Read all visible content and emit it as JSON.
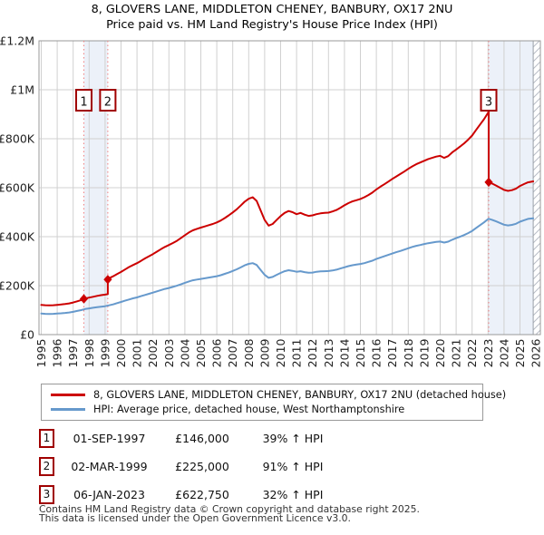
{
  "title": {
    "line1": "8, GLOVERS LANE, MIDDLETON CHENEY, BANBURY, OX17 2NU",
    "line2": "Price paid vs. HM Land Registry's House Price Index (HPI)"
  },
  "colors": {
    "price_line": "#cc0000",
    "hpi_line": "#6699cc",
    "marker_box_border": "#a00000",
    "sale_dash_line": "#f08080",
    "grid": "#d0d0d0",
    "plot_border": "#999999",
    "band_fill": "#ecf1f9",
    "hatch_stroke": "#b9bec7",
    "tick_text": "#222222"
  },
  "chart_data": {
    "type": "line",
    "title": "8, GLOVERS LANE, MIDDLETON CHENEY, BANBURY, OX17 2NU",
    "subtitle": "Price paid vs. HM Land Registry's House Price Index (HPI)",
    "xlim": [
      1994.86,
      2026.28
    ],
    "ylim": [
      0,
      1200000
    ],
    "grid": true,
    "legend_position": "below",
    "x_ticks": [
      1995,
      1996,
      1997,
      1998,
      1999,
      2000,
      2001,
      2002,
      2003,
      2004,
      2005,
      2006,
      2007,
      2008,
      2009,
      2010,
      2011,
      2012,
      2013,
      2014,
      2015,
      2016,
      2017,
      2018,
      2019,
      2020,
      2021,
      2022,
      2023,
      2024,
      2025,
      2026
    ],
    "y_ticks": [
      {
        "v": 0,
        "label": "£0"
      },
      {
        "v": 200000,
        "label": "£200K"
      },
      {
        "v": 400000,
        "label": "£400K"
      },
      {
        "v": 600000,
        "label": "£600K"
      },
      {
        "v": 800000,
        "label": "£800K"
      },
      {
        "v": 1000000,
        "label": "£1M"
      },
      {
        "v": 1200000,
        "label": "£1.2M"
      }
    ],
    "bands": [
      [
        1997.67,
        1999.17
      ],
      [
        2023.04,
        2025.83
      ]
    ],
    "hatch": [
      2025.83,
      2026.28
    ],
    "sales": [
      {
        "label": "1",
        "x": 1997.67,
        "price": 146000
      },
      {
        "label": "2",
        "x": 1999.17,
        "price": 225000
      },
      {
        "label": "3",
        "x": 2023.04,
        "price": 622750
      }
    ],
    "series": [
      {
        "name": "8, GLOVERS LANE, MIDDLETON CHENEY, BANBURY, OX17 2NU (detached house)",
        "color": "#cc0000",
        "points": [
          [
            1995.0,
            121000
          ],
          [
            1995.25,
            120000
          ],
          [
            1995.5,
            119500
          ],
          [
            1995.75,
            120000
          ],
          [
            1996.0,
            121500
          ],
          [
            1996.25,
            123000
          ],
          [
            1996.5,
            125000
          ],
          [
            1996.75,
            127500
          ],
          [
            1997.0,
            131000
          ],
          [
            1997.25,
            136000
          ],
          [
            1997.5,
            141000
          ],
          [
            1997.67,
            146000
          ],
          [
            1997.75,
            147500
          ],
          [
            1998.0,
            151000
          ],
          [
            1998.25,
            154500
          ],
          [
            1998.5,
            158000
          ],
          [
            1998.75,
            161000
          ],
          [
            1999.0,
            163500
          ],
          [
            1999.17,
            165000
          ],
          [
            1999.17,
            225000
          ],
          [
            1999.25,
            230000
          ],
          [
            1999.5,
            238000
          ],
          [
            1999.75,
            247000
          ],
          [
            2000.0,
            256000
          ],
          [
            2000.25,
            266000
          ],
          [
            2000.5,
            276000
          ],
          [
            2000.75,
            284000
          ],
          [
            2001.0,
            292000
          ],
          [
            2001.25,
            301000
          ],
          [
            2001.5,
            311000
          ],
          [
            2001.75,
            320000
          ],
          [
            2002.0,
            329000
          ],
          [
            2002.25,
            339000
          ],
          [
            2002.5,
            349000
          ],
          [
            2002.75,
            358000
          ],
          [
            2003.0,
            366000
          ],
          [
            2003.25,
            374000
          ],
          [
            2003.5,
            383000
          ],
          [
            2003.75,
            394000
          ],
          [
            2004.0,
            406000
          ],
          [
            2004.25,
            417000
          ],
          [
            2004.5,
            426000
          ],
          [
            2004.75,
            432000
          ],
          [
            2005.0,
            437000
          ],
          [
            2005.25,
            442000
          ],
          [
            2005.5,
            447000
          ],
          [
            2005.75,
            452000
          ],
          [
            2006.0,
            458000
          ],
          [
            2006.25,
            466000
          ],
          [
            2006.5,
            476000
          ],
          [
            2006.75,
            487000
          ],
          [
            2007.0,
            499000
          ],
          [
            2007.25,
            512000
          ],
          [
            2007.5,
            527000
          ],
          [
            2007.75,
            543000
          ],
          [
            2008.0,
            555000
          ],
          [
            2008.25,
            561000
          ],
          [
            2008.5,
            546000
          ],
          [
            2008.75,
            507000
          ],
          [
            2009.0,
            468000
          ],
          [
            2009.25,
            445000
          ],
          [
            2009.5,
            452000
          ],
          [
            2009.75,
            468000
          ],
          [
            2010.0,
            484000
          ],
          [
            2010.25,
            497000
          ],
          [
            2010.5,
            505000
          ],
          [
            2010.75,
            500000
          ],
          [
            2011.0,
            492000
          ],
          [
            2011.25,
            497000
          ],
          [
            2011.5,
            490000
          ],
          [
            2011.75,
            485000
          ],
          [
            2012.0,
            487000
          ],
          [
            2012.25,
            492000
          ],
          [
            2012.5,
            495000
          ],
          [
            2012.75,
            497000
          ],
          [
            2013.0,
            498000
          ],
          [
            2013.25,
            503000
          ],
          [
            2013.5,
            509000
          ],
          [
            2013.75,
            518000
          ],
          [
            2014.0,
            528000
          ],
          [
            2014.25,
            537000
          ],
          [
            2014.5,
            544000
          ],
          [
            2014.75,
            549000
          ],
          [
            2015.0,
            554000
          ],
          [
            2015.25,
            561000
          ],
          [
            2015.5,
            570000
          ],
          [
            2015.75,
            580000
          ],
          [
            2016.0,
            593000
          ],
          [
            2016.25,
            604000
          ],
          [
            2016.5,
            614000
          ],
          [
            2016.75,
            625000
          ],
          [
            2017.0,
            636000
          ],
          [
            2017.25,
            646000
          ],
          [
            2017.5,
            656000
          ],
          [
            2017.75,
            666000
          ],
          [
            2018.0,
            677000
          ],
          [
            2018.25,
            687000
          ],
          [
            2018.5,
            696000
          ],
          [
            2018.75,
            703000
          ],
          [
            2019.0,
            710000
          ],
          [
            2019.25,
            717000
          ],
          [
            2019.5,
            722000
          ],
          [
            2019.75,
            727000
          ],
          [
            2020.0,
            730000
          ],
          [
            2020.25,
            722000
          ],
          [
            2020.5,
            729000
          ],
          [
            2020.75,
            744000
          ],
          [
            2021.0,
            756000
          ],
          [
            2021.25,
            768000
          ],
          [
            2021.5,
            781000
          ],
          [
            2021.75,
            796000
          ],
          [
            2022.0,
            813000
          ],
          [
            2022.25,
            836000
          ],
          [
            2022.5,
            858000
          ],
          [
            2022.75,
            880000
          ],
          [
            2023.0,
            906000
          ],
          [
            2023.04,
            912000
          ],
          [
            2023.04,
            622750
          ],
          [
            2023.25,
            617000
          ],
          [
            2023.5,
            609000
          ],
          [
            2023.75,
            600000
          ],
          [
            2024.0,
            591000
          ],
          [
            2024.25,
            587000
          ],
          [
            2024.5,
            590000
          ],
          [
            2024.75,
            596000
          ],
          [
            2025.0,
            607000
          ],
          [
            2025.25,
            615000
          ],
          [
            2025.5,
            622000
          ],
          [
            2025.83,
            626000
          ]
        ]
      },
      {
        "name": "HPI: Average price, detached house, West Northamptonshire",
        "color": "#6699cc",
        "points": [
          [
            1995.0,
            86000
          ],
          [
            1995.25,
            85000
          ],
          [
            1995.5,
            84500
          ],
          [
            1995.75,
            85000
          ],
          [
            1996.0,
            86000
          ],
          [
            1996.25,
            87000
          ],
          [
            1996.5,
            88500
          ],
          [
            1996.75,
            90500
          ],
          [
            1997.0,
            93000
          ],
          [
            1997.25,
            96500
          ],
          [
            1997.5,
            100000
          ],
          [
            1997.75,
            104500
          ],
          [
            1998.0,
            107000
          ],
          [
            1998.25,
            109500
          ],
          [
            1998.5,
            112000
          ],
          [
            1998.75,
            114000
          ],
          [
            1999.0,
            116000
          ],
          [
            1999.25,
            119500
          ],
          [
            1999.5,
            123500
          ],
          [
            1999.75,
            128500
          ],
          [
            2000.0,
            133500
          ],
          [
            2000.25,
            138500
          ],
          [
            2000.5,
            143500
          ],
          [
            2000.75,
            148000
          ],
          [
            2001.0,
            152000
          ],
          [
            2001.25,
            157000
          ],
          [
            2001.5,
            162000
          ],
          [
            2001.75,
            166500
          ],
          [
            2002.0,
            171500
          ],
          [
            2002.25,
            176500
          ],
          [
            2002.5,
            182000
          ],
          [
            2002.75,
            186500
          ],
          [
            2003.0,
            190500
          ],
          [
            2003.25,
            195000
          ],
          [
            2003.5,
            199500
          ],
          [
            2003.75,
            205000
          ],
          [
            2004.0,
            211500
          ],
          [
            2004.25,
            217000
          ],
          [
            2004.5,
            222000
          ],
          [
            2004.75,
            225000
          ],
          [
            2005.0,
            227500
          ],
          [
            2005.25,
            230000
          ],
          [
            2005.5,
            233000
          ],
          [
            2005.75,
            235500
          ],
          [
            2006.0,
            238500
          ],
          [
            2006.25,
            242500
          ],
          [
            2006.5,
            248000
          ],
          [
            2006.75,
            253500
          ],
          [
            2007.0,
            260000
          ],
          [
            2007.25,
            266500
          ],
          [
            2007.5,
            274500
          ],
          [
            2007.75,
            283000
          ],
          [
            2008.0,
            289000
          ],
          [
            2008.25,
            292000
          ],
          [
            2008.5,
            284500
          ],
          [
            2008.75,
            264000
          ],
          [
            2009.0,
            244000
          ],
          [
            2009.25,
            232000
          ],
          [
            2009.5,
            235500
          ],
          [
            2009.75,
            244000
          ],
          [
            2010.0,
            252000
          ],
          [
            2010.25,
            259000
          ],
          [
            2010.5,
            263000
          ],
          [
            2010.75,
            260500
          ],
          [
            2011.0,
            256500
          ],
          [
            2011.25,
            259000
          ],
          [
            2011.5,
            255000
          ],
          [
            2011.75,
            252500
          ],
          [
            2012.0,
            253500
          ],
          [
            2012.25,
            256500
          ],
          [
            2012.5,
            258000
          ],
          [
            2012.75,
            259000
          ],
          [
            2013.0,
            259500
          ],
          [
            2013.25,
            262000
          ],
          [
            2013.5,
            265000
          ],
          [
            2013.75,
            270000
          ],
          [
            2014.0,
            275000
          ],
          [
            2014.25,
            279500
          ],
          [
            2014.5,
            283500
          ],
          [
            2014.75,
            286000
          ],
          [
            2015.0,
            288500
          ],
          [
            2015.25,
            292000
          ],
          [
            2015.5,
            297000
          ],
          [
            2015.75,
            302000
          ],
          [
            2016.0,
            309000
          ],
          [
            2016.25,
            314500
          ],
          [
            2016.5,
            320000
          ],
          [
            2016.75,
            325500
          ],
          [
            2017.0,
            331000
          ],
          [
            2017.25,
            336500
          ],
          [
            2017.5,
            341500
          ],
          [
            2017.75,
            347000
          ],
          [
            2018.0,
            352500
          ],
          [
            2018.25,
            358000
          ],
          [
            2018.5,
            362500
          ],
          [
            2018.75,
            366000
          ],
          [
            2019.0,
            370000
          ],
          [
            2019.25,
            373500
          ],
          [
            2019.5,
            376000
          ],
          [
            2019.75,
            378500
          ],
          [
            2020.0,
            380000
          ],
          [
            2020.25,
            376000
          ],
          [
            2020.5,
            379500
          ],
          [
            2020.75,
            387500
          ],
          [
            2021.0,
            394000
          ],
          [
            2021.25,
            400000
          ],
          [
            2021.5,
            406500
          ],
          [
            2021.75,
            414500
          ],
          [
            2022.0,
            423500
          ],
          [
            2022.25,
            435500
          ],
          [
            2022.5,
            447000
          ],
          [
            2022.75,
            458500
          ],
          [
            2023.0,
            472000
          ],
          [
            2023.04,
            473000
          ],
          [
            2023.25,
            469000
          ],
          [
            2023.5,
            462500
          ],
          [
            2023.75,
            456000
          ],
          [
            2024.0,
            449000
          ],
          [
            2024.25,
            446000
          ],
          [
            2024.5,
            448000
          ],
          [
            2024.75,
            452500
          ],
          [
            2025.0,
            461000
          ],
          [
            2025.25,
            467000
          ],
          [
            2025.5,
            472500
          ],
          [
            2025.83,
            475000
          ]
        ]
      }
    ]
  },
  "legend": {
    "items": [
      {
        "color": "#cc0000",
        "label": "8, GLOVERS LANE, MIDDLETON CHENEY, BANBURY, OX17 2NU (detached house)"
      },
      {
        "color": "#6699cc",
        "label": "HPI: Average price, detached house, West Northamptonshire"
      }
    ]
  },
  "sales_table": {
    "rows": [
      {
        "num": "1",
        "date": "01-SEP-1997",
        "price": "£146,000",
        "vs_hpi": "39% ↑ HPI"
      },
      {
        "num": "2",
        "date": "02-MAR-1999",
        "price": "£225,000",
        "vs_hpi": "91% ↑ HPI"
      },
      {
        "num": "3",
        "date": "06-JAN-2023",
        "price": "£622,750",
        "vs_hpi": "32% ↑ HPI"
      }
    ]
  },
  "footer": {
    "line1": "Contains HM Land Registry data © Crown copyright and database right 2025.",
    "line2": "This data is licensed under the Open Government Licence v3.0."
  }
}
